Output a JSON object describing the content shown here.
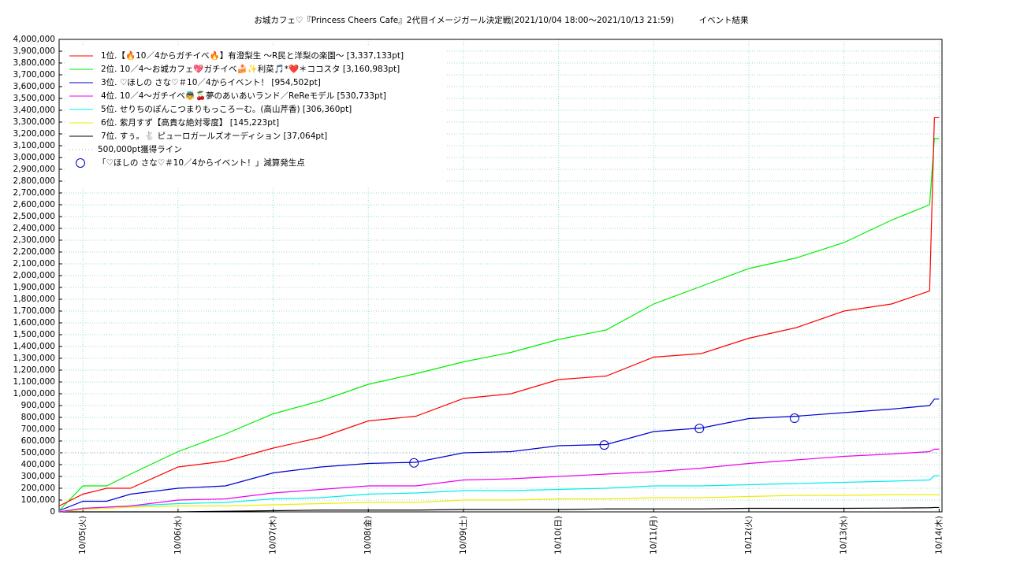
{
  "chart_data": {
    "type": "line",
    "title": "お城カフェ♡『Princess Cheers Cafe』2代目イメージガール決定戦(2021/10/04 18:00～2021/10/13 21:59)　　　イベント結果",
    "x": [
      4.75,
      5.0,
      5.25,
      5.5,
      6.0,
      6.5,
      7.0,
      7.5,
      8.0,
      8.5,
      9.0,
      9.5,
      10.0,
      10.5,
      11.0,
      11.5,
      12.0,
      12.5,
      13.0,
      13.5,
      13.9,
      13.95,
      14.0
    ],
    "series": [
      {
        "name": "1位.【🔥10／4からガチイベ🔥】有澄梨生 〜R民と洋梨の楽園〜 [3,337,133pt]",
        "color": "#ff0000",
        "values": [
          50000,
          150000,
          200000,
          200000,
          380000,
          430000,
          540000,
          630000,
          770000,
          810000,
          960000,
          1000000,
          1120000,
          1150000,
          1310000,
          1340000,
          1470000,
          1560000,
          1700000,
          1760000,
          1870000,
          3337133,
          3337133
        ]
      },
      {
        "name": "2位. 10／4〜お城カフェ💖ガチイベ🍰✨利菜🎵*❤️＊ココスタ [3,160,983pt]",
        "color": "#00ee00",
        "values": [
          10000,
          220000,
          220000,
          320000,
          510000,
          660000,
          830000,
          940000,
          1080000,
          1170000,
          1270000,
          1350000,
          1460000,
          1540000,
          1760000,
          1910000,
          2060000,
          2150000,
          2280000,
          2470000,
          2600000,
          3160983,
          3160983
        ]
      },
      {
        "name": "3位. ♡ほしの さな♡＃10／4からイベント！ [954,502pt]",
        "color": "#0000cc",
        "values": [
          10000,
          90000,
          90000,
          150000,
          200000,
          220000,
          330000,
          380000,
          410000,
          420000,
          500000,
          510000,
          560000,
          570000,
          680000,
          710000,
          790000,
          810000,
          840000,
          870000,
          900000,
          954502,
          954502
        ]
      },
      {
        "name": "4位. 10／4〜ガチイベ👼🍒夢のあいあいランド／ReReモデル [530,733pt]",
        "color": "#ee00ee",
        "values": [
          0,
          30000,
          40000,
          50000,
          100000,
          110000,
          160000,
          190000,
          220000,
          220000,
          270000,
          280000,
          300000,
          320000,
          340000,
          370000,
          410000,
          440000,
          470000,
          490000,
          510000,
          530733,
          530733
        ]
      },
      {
        "name": "5位. せりちのぽんこつまりもっころーむ。(高山芹香) [306,360pt]",
        "color": "#00eeee",
        "values": [
          0,
          30000,
          40000,
          50000,
          70000,
          80000,
          110000,
          120000,
          150000,
          160000,
          180000,
          180000,
          190000,
          200000,
          220000,
          220000,
          230000,
          240000,
          250000,
          260000,
          270000,
          306360,
          306360
        ]
      },
      {
        "name": "6位. 紫月すず【高貴な絶対零度】 [145,223pt]",
        "color": "#eeee00",
        "values": [
          0,
          20000,
          30000,
          40000,
          50000,
          50000,
          60000,
          70000,
          80000,
          80000,
          100000,
          100000,
          110000,
          110000,
          120000,
          120000,
          130000,
          140000,
          140000,
          145223,
          145223,
          145223,
          145223
        ]
      },
      {
        "name": "7位. すぅ。🐇 ピューロガールズオーディション [37,064pt]",
        "color": "#000000",
        "values": [
          0,
          0,
          0,
          0,
          0,
          5000,
          10000,
          15000,
          15000,
          15000,
          20000,
          20000,
          20000,
          25000,
          25000,
          25000,
          30000,
          30000,
          30000,
          32000,
          35000,
          37064,
          37064
        ]
      }
    ],
    "reference_line": {
      "name": "500,000pt獲得ライン",
      "value": 500000,
      "color": "#aaaaaa"
    },
    "markers": {
      "name": "「♡ほしの さな♡＃10／4からイベント！」減算発生点",
      "color": "#0000cc",
      "x": [
        8.48,
        10.48,
        11.48,
        12.48
      ],
      "values": [
        415000,
        566000,
        706000,
        793000
      ]
    },
    "xlim": [
      4.75,
      14.03
    ],
    "xticks": [
      {
        "value": 5,
        "label": "10/05(火)"
      },
      {
        "value": 6,
        "label": "10/06(水)"
      },
      {
        "value": 7,
        "label": "10/07(木)"
      },
      {
        "value": 8,
        "label": "10/08(金)"
      },
      {
        "value": 9,
        "label": "10/09(土)"
      },
      {
        "value": 10,
        "label": "10/10(日)"
      },
      {
        "value": 11,
        "label": "10/11(月)"
      },
      {
        "value": 12,
        "label": "10/12(火)"
      },
      {
        "value": 13,
        "label": "10/13(水)"
      },
      {
        "value": 14,
        "label": "10/14(木)"
      }
    ],
    "ylim": [
      0,
      4000000
    ],
    "yticks": [
      0,
      {
        "value": 100000,
        "label": "100,000"
      },
      {
        "value": 200000,
        "label": "200,000"
      },
      {
        "value": 300000,
        "label": "300,000"
      },
      {
        "value": 400000,
        "label": "400,000"
      },
      {
        "value": 500000,
        "label": "500,000"
      },
      {
        "value": 600000,
        "label": "600,000"
      },
      {
        "value": 700000,
        "label": "700,000"
      },
      {
        "value": 800000,
        "label": "800,000"
      },
      {
        "value": 900000,
        "label": "900,000"
      },
      {
        "value": 1000000,
        "label": "1,000,000"
      },
      {
        "value": 1100000,
        "label": "1,100,000"
      },
      {
        "value": 1200000,
        "label": "1,200,000"
      },
      {
        "value": 1300000,
        "label": "1,300,000"
      },
      {
        "value": 1400000,
        "label": "1,400,000"
      },
      {
        "value": 1500000,
        "label": "1,500,000"
      },
      {
        "value": 1600000,
        "label": "1,600,000"
      },
      {
        "value": 1700000,
        "label": "1,700,000"
      },
      {
        "value": 1800000,
        "label": "1,800,000"
      },
      {
        "value": 1900000,
        "label": "1,900,000"
      },
      {
        "value": 2000000,
        "label": "2,000,000"
      },
      {
        "value": 2100000,
        "label": "2,100,000"
      },
      {
        "value": 2200000,
        "label": "2,200,000"
      },
      {
        "value": 2300000,
        "label": "2,300,000"
      },
      {
        "value": 2400000,
        "label": "2,400,000"
      },
      {
        "value": 2500000,
        "label": "2,500,000"
      },
      {
        "value": 2600000,
        "label": "2,600,000"
      },
      {
        "value": 2700000,
        "label": "2,700,000"
      },
      {
        "value": 2800000,
        "label": "2,800,000"
      },
      {
        "value": 2900000,
        "label": "2,900,000"
      },
      {
        "value": 3000000,
        "label": "3,000,000"
      },
      {
        "value": 3100000,
        "label": "3,100,000"
      },
      {
        "value": 3200000,
        "label": "3,200,000"
      },
      {
        "value": 3300000,
        "label": "3,300,000"
      },
      {
        "value": 3400000,
        "label": "3,400,000"
      },
      {
        "value": 3500000,
        "label": "3,500,000"
      },
      {
        "value": 3600000,
        "label": "3,600,000"
      },
      {
        "value": 3700000,
        "label": "3,700,000"
      },
      {
        "value": 3800000,
        "label": "3,800,000"
      },
      {
        "value": 3900000,
        "label": "3,900,000"
      },
      {
        "value": 4000000,
        "label": "4,000,000"
      }
    ],
    "grid": true,
    "grid_color": "#99ddcc",
    "legend": "upper left"
  }
}
